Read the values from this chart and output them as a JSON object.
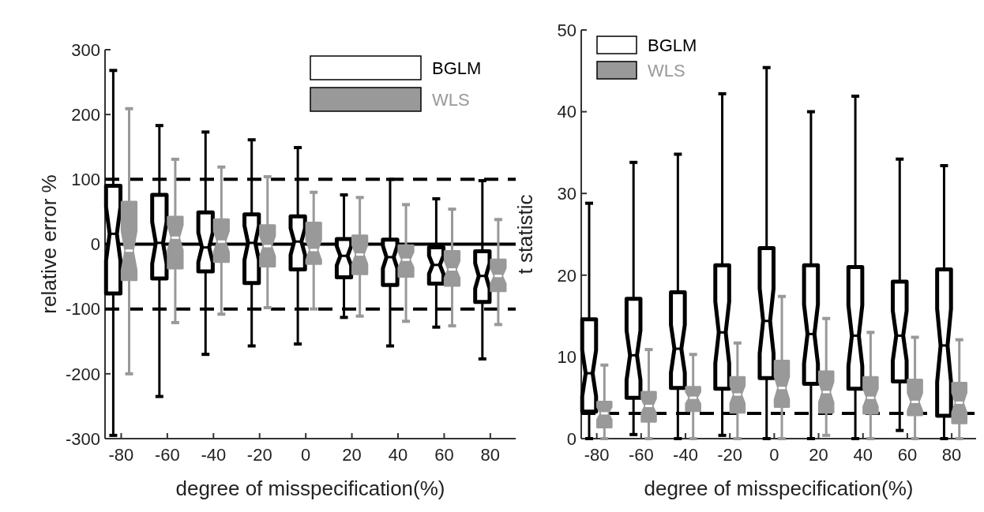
{
  "chart_data": [
    {
      "type": "box",
      "xlabel": "degree of misspecification(%)",
      "ylabel": "relative error %",
      "categories": [
        "-80",
        "-60",
        "-40",
        "-20",
        "0",
        "20",
        "40",
        "60",
        "80"
      ],
      "ylim": [
        -300,
        300
      ],
      "yticks": [
        -300,
        -200,
        -100,
        0,
        100,
        200,
        300
      ],
      "legend": "top right",
      "ref_lines": [
        {
          "axis": "y",
          "value": 100,
          "line_style": "dashed",
          "color": "#000000"
        },
        {
          "axis": "y",
          "value": -100,
          "line_style": "dashed",
          "color": "#000000"
        },
        {
          "axis": "y",
          "value": 0,
          "line_style": "solid",
          "color": "#000000"
        }
      ],
      "series": [
        {
          "name": "BGLM",
          "color": "#000000",
          "boxes": [
            {
              "low": -295,
              "q1": -76,
              "median": 16,
              "q3": 90,
              "high": 268
            },
            {
              "low": -235,
              "q1": -53,
              "median": 2,
              "q3": 76,
              "high": 183
            },
            {
              "low": -170,
              "q1": -42,
              "median": -5,
              "q3": 49,
              "high": 173
            },
            {
              "low": -157,
              "q1": -60,
              "median": 2,
              "q3": 46,
              "high": 161
            },
            {
              "low": -154,
              "q1": -39,
              "median": 4,
              "q3": 43,
              "high": 149
            },
            {
              "low": -113,
              "q1": -51,
              "median": -18,
              "q3": 8,
              "high": 76
            },
            {
              "low": -157,
              "q1": -63,
              "median": -20,
              "q3": 7,
              "high": 100
            },
            {
              "low": -128,
              "q1": -61,
              "median": -32,
              "q3": -5,
              "high": 70
            },
            {
              "low": -177,
              "q1": -89,
              "median": -49,
              "q3": -11,
              "high": 98
            }
          ]
        },
        {
          "name": "WLS",
          "color": "#999999",
          "boxes": [
            {
              "low": -200,
              "q1": -55,
              "median": -10,
              "q3": 65,
              "high": 209
            },
            {
              "low": -121,
              "q1": -37,
              "median": 10,
              "q3": 42,
              "high": 131
            },
            {
              "low": -108,
              "q1": -27,
              "median": 4,
              "q3": 38,
              "high": 119
            },
            {
              "low": -98,
              "q1": -34,
              "median": -3,
              "q3": 29,
              "high": 104
            },
            {
              "low": -100,
              "q1": -30,
              "median": -9,
              "q3": 33,
              "high": 80
            },
            {
              "low": -111,
              "q1": -46,
              "median": -16,
              "q3": 13,
              "high": 72
            },
            {
              "low": -119,
              "q1": -50,
              "median": -24,
              "q3": -2,
              "high": 61
            },
            {
              "low": -126,
              "q1": -64,
              "median": -39,
              "q3": -11,
              "high": 54
            },
            {
              "low": -124,
              "q1": -72,
              "median": -49,
              "q3": -24,
              "high": 38
            }
          ]
        }
      ]
    },
    {
      "type": "box",
      "xlabel": "degree of misspecification(%)",
      "ylabel": "t statistic",
      "categories": [
        "-80",
        "-60",
        "-40",
        "-20",
        "0",
        "20",
        "40",
        "60",
        "80"
      ],
      "ylim": [
        0,
        50
      ],
      "yticks": [
        0,
        10,
        20,
        30,
        40,
        50
      ],
      "legend": "top left",
      "ref_lines": [
        {
          "axis": "y",
          "value": 3.1,
          "line_style": "dashed",
          "color": "#000000"
        }
      ],
      "series": [
        {
          "name": "BGLM",
          "color": "#000000",
          "boxes": [
            {
              "low": 0,
              "q1": 3.3,
              "median": 8.0,
              "q3": 14.6,
              "high": 28.8
            },
            {
              "low": 0.5,
              "q1": 5.0,
              "median": 10.2,
              "q3": 17.1,
              "high": 33.8
            },
            {
              "low": 0,
              "q1": 6.2,
              "median": 11.0,
              "q3": 17.9,
              "high": 34.8
            },
            {
              "low": 0.4,
              "q1": 6.1,
              "median": 13.0,
              "q3": 21.2,
              "high": 42.2
            },
            {
              "low": 0,
              "q1": 7.4,
              "median": 14.4,
              "q3": 23.3,
              "high": 45.4
            },
            {
              "low": 0,
              "q1": 6.7,
              "median": 12.8,
              "q3": 21.2,
              "high": 40
            },
            {
              "low": 0,
              "q1": 6.1,
              "median": 12.6,
              "q3": 21.0,
              "high": 41.9
            },
            {
              "low": 1.0,
              "q1": 7.0,
              "median": 12.6,
              "q3": 19.2,
              "high": 34.2
            },
            {
              "low": 0,
              "q1": 2.8,
              "median": 11.4,
              "q3": 20.7,
              "high": 33.4
            }
          ]
        },
        {
          "name": "WLS",
          "color": "#999999",
          "boxes": [
            {
              "low": 0,
              "q1": 1.4,
              "median": 3.1,
              "q3": 4.5,
              "high": 9.0
            },
            {
              "low": 0,
              "q1": 2.1,
              "median": 4.0,
              "q3": 5.7,
              "high": 10.9
            },
            {
              "low": 0,
              "q1": 3.4,
              "median": 5.0,
              "q3": 6.3,
              "high": 10.3
            },
            {
              "low": 0,
              "q1": 3.2,
              "median": 5.4,
              "q3": 7.5,
              "high": 11.7
            },
            {
              "low": 0,
              "q1": 3.9,
              "median": 6.2,
              "q3": 9.5,
              "high": 17.4
            },
            {
              "low": 0.4,
              "q1": 3.2,
              "median": 5.7,
              "q3": 8.2,
              "high": 14.7
            },
            {
              "low": 0,
              "q1": 3.1,
              "median": 5.0,
              "q3": 7.5,
              "high": 13.0
            },
            {
              "low": 0,
              "q1": 2.9,
              "median": 4.5,
              "q3": 7.2,
              "high": 12.4
            },
            {
              "low": 0,
              "q1": 1.9,
              "median": 4.4,
              "q3": 6.8,
              "high": 12.1
            }
          ]
        }
      ]
    }
  ]
}
